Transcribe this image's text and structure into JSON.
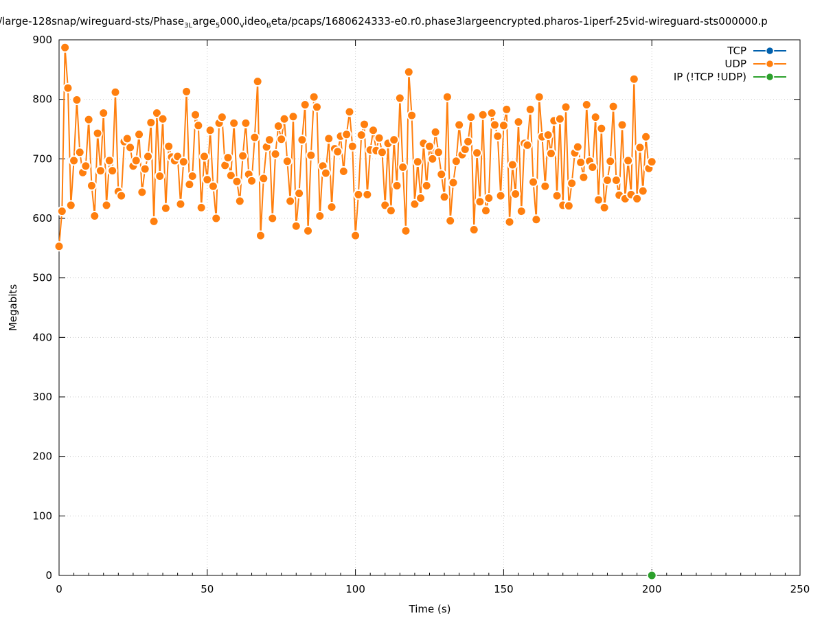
{
  "chart_data": {
    "type": "line",
    "title": {
      "segments": [
        {
          "text": "/large-128snap/wireguard-sts/Phase",
          "sub": false
        },
        {
          "text": "3L",
          "sub": true
        },
        {
          "text": "arge",
          "sub": false
        },
        {
          "text": "5",
          "sub": true
        },
        {
          "text": "000",
          "sub": false
        },
        {
          "text": "V",
          "sub": true
        },
        {
          "text": "ideo",
          "sub": false
        },
        {
          "text": "B",
          "sub": true
        },
        {
          "text": "eta/pcaps/1680624333-e0.r0.phase3largeencrypted.pharos-1iperf-25vid-wireguard-sts000000.p",
          "sub": false
        }
      ]
    },
    "xlabel": "Time (s)",
    "ylabel": "Megabits",
    "xlim": [
      0,
      250
    ],
    "ylim": [
      0,
      900
    ],
    "xticks": [
      0,
      50,
      100,
      150,
      200,
      250
    ],
    "yticks": [
      0,
      100,
      200,
      300,
      400,
      500,
      600,
      700,
      800,
      900
    ],
    "grid": true,
    "legend_position": "top-right",
    "series": [
      {
        "name": "TCP",
        "color": "#0060ad",
        "x": [],
        "y": []
      },
      {
        "name": "UDP",
        "color": "#ff7f0e",
        "x": [
          0,
          1,
          2,
          3,
          4,
          5,
          6,
          7,
          8,
          9,
          10,
          11,
          12,
          13,
          14,
          15,
          16,
          17,
          18,
          19,
          20,
          21,
          22,
          23,
          24,
          25,
          26,
          27,
          28,
          29,
          30,
          31,
          32,
          33,
          34,
          35,
          36,
          37,
          38,
          39,
          40,
          41,
          42,
          43,
          44,
          45,
          46,
          47,
          48,
          49,
          50,
          51,
          52,
          53,
          54,
          55,
          56,
          57,
          58,
          59,
          60,
          61,
          62,
          63,
          64,
          65,
          66,
          67,
          68,
          69,
          70,
          71,
          72,
          73,
          74,
          75,
          76,
          77,
          78,
          79,
          80,
          81,
          82,
          83,
          84,
          85,
          86,
          87,
          88,
          89,
          90,
          91,
          92,
          93,
          94,
          95,
          96,
          97,
          98,
          99,
          100,
          101,
          102,
          103,
          104,
          105,
          106,
          107,
          108,
          109,
          110,
          111,
          112,
          113,
          114,
          115,
          116,
          117,
          118,
          119,
          120,
          121,
          122,
          123,
          124,
          125,
          126,
          127,
          128,
          129,
          130,
          131,
          132,
          133,
          134,
          135,
          136,
          137,
          138,
          139,
          140,
          141,
          142,
          143,
          144,
          145,
          146,
          147,
          148,
          149,
          150,
          151,
          152,
          153,
          154,
          155,
          156,
          157,
          158,
          159,
          160,
          161,
          162,
          163,
          164,
          165,
          166,
          167,
          168,
          169,
          170,
          171,
          172,
          173,
          174,
          175,
          176,
          177,
          178,
          179,
          180,
          181,
          182,
          183,
          184,
          185,
          186,
          187,
          188,
          189,
          190,
          191,
          192,
          193,
          194,
          195,
          196,
          197,
          198,
          199,
          200
        ],
        "y": [
          553,
          612,
          887,
          819,
          622,
          697,
          799,
          711,
          677,
          688,
          766,
          655,
          604,
          743,
          680,
          777,
          622,
          697,
          680,
          812,
          645,
          638,
          729,
          734,
          719,
          688,
          697,
          741,
          644,
          683,
          704,
          761,
          595,
          777,
          671,
          767,
          617,
          721,
          703,
          697,
          704,
          624,
          695,
          813,
          657,
          671,
          774,
          756,
          618,
          704,
          665,
          748,
          654,
          600,
          760,
          770,
          689,
          702,
          672,
          760,
          662,
          629,
          705,
          760,
          674,
          663,
          736,
          830,
          571,
          667,
          720,
          732,
          600,
          708,
          755,
          733,
          767,
          696,
          629,
          771,
          587,
          642,
          732,
          791,
          579,
          706,
          804,
          787,
          604,
          688,
          676,
          734,
          619,
          717,
          712,
          738,
          679,
          741,
          779,
          721,
          571,
          640,
          740,
          758,
          640,
          715,
          748,
          714,
          735,
          711,
          622,
          726,
          613,
          732,
          655,
          802,
          686,
          579,
          846,
          773,
          624,
          695,
          634,
          726,
          655,
          721,
          700,
          745,
          711,
          674,
          636,
          804,
          596,
          660,
          696,
          757,
          707,
          716,
          729,
          770,
          581,
          710,
          628,
          774,
          613,
          634,
          777,
          757,
          738,
          638,
          756,
          783,
          594,
          690,
          641,
          762,
          612,
          726,
          723,
          783,
          661,
          598,
          804,
          737,
          654,
          740,
          709,
          764,
          638,
          767,
          622,
          787,
          621,
          659,
          710,
          720,
          694,
          669,
          791,
          696,
          686,
          770,
          631,
          751,
          618,
          664,
          696,
          788,
          664,
          639,
          757,
          633,
          697,
          640,
          834,
          633,
          719,
          646,
          737,
          684,
          695
        ]
      },
      {
        "name": "IP (!TCP  !UDP)",
        "color": "#2ca02c",
        "x": [
          200
        ],
        "y": [
          0
        ]
      }
    ]
  }
}
